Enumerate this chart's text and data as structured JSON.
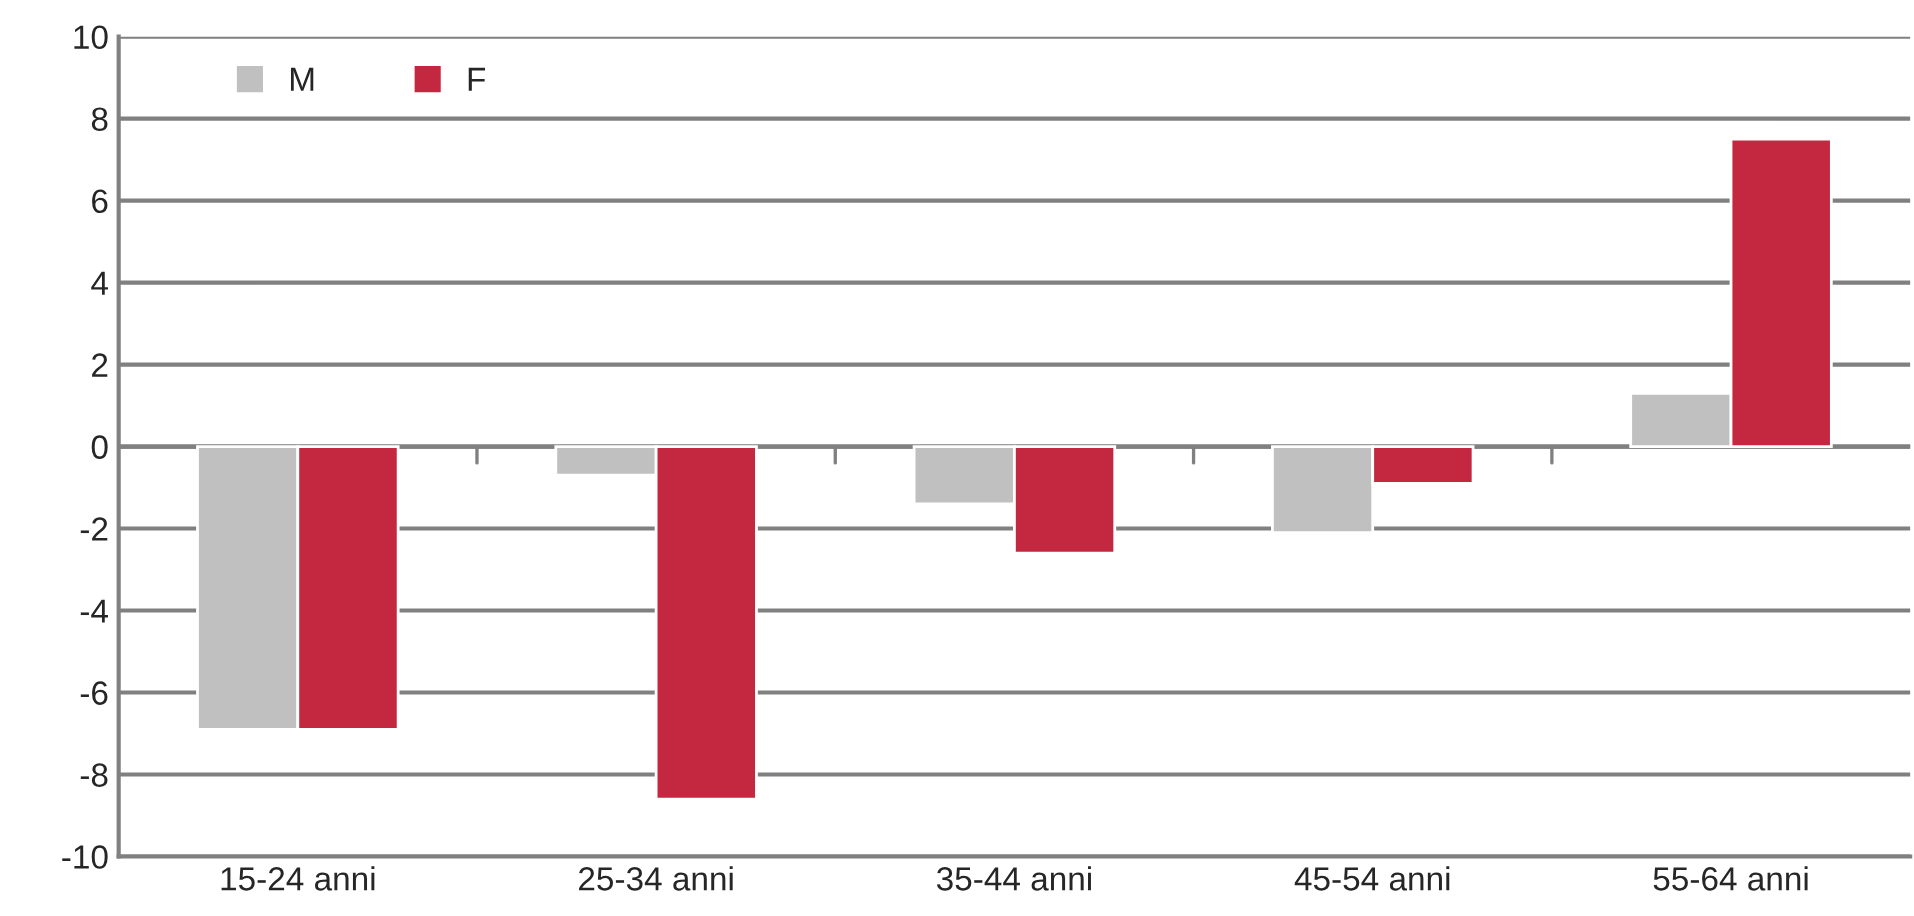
{
  "chart_data": {
    "type": "bar",
    "categories": [
      "15-24 anni",
      "25-34 anni",
      "35-44 anni",
      "45-54 anni",
      "55-64 anni"
    ],
    "series": [
      {
        "name": "M",
        "color": "#c0c0c0",
        "values": [
          -6.9,
          -0.7,
          -1.4,
          -2.1,
          1.3
        ]
      },
      {
        "name": "F",
        "color": "#c42740",
        "values": [
          -6.9,
          -8.6,
          -2.6,
          -0.9,
          7.5
        ]
      }
    ],
    "ylim": [
      -10,
      10
    ],
    "yticks": [
      -10,
      -8,
      -6,
      -4,
      -2,
      0,
      2,
      4,
      6,
      8,
      10
    ],
    "grid": "y",
    "legend": "top left"
  }
}
